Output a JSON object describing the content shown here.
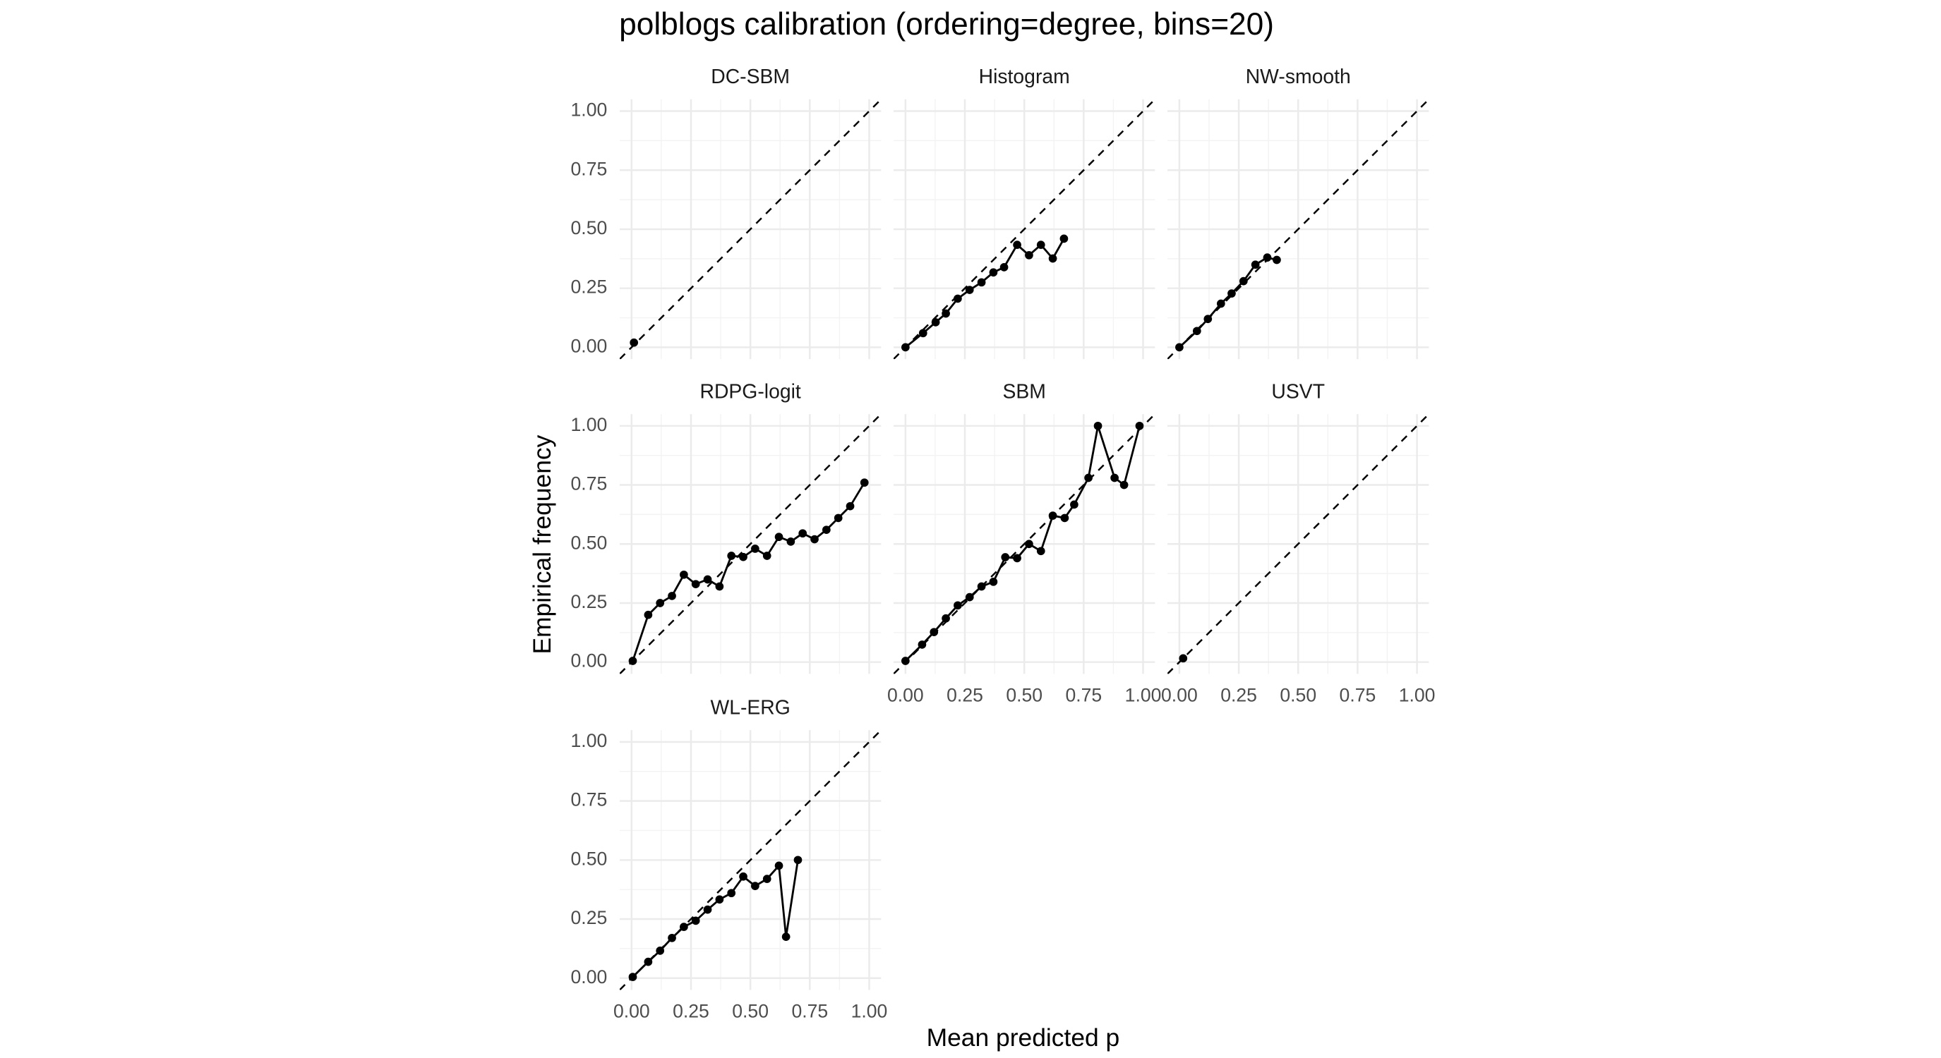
{
  "title": "polblogs calibration (ordering=degree, bins=20)",
  "x_label": "Mean predicted p",
  "y_label": "Empirical frequency",
  "xlim": [
    -0.05,
    1.05
  ],
  "ylim": [
    -0.05,
    1.05
  ],
  "xticks": [
    {
      "value": 0,
      "label": "0.00"
    },
    {
      "value": 0.25,
      "label": "0.25"
    },
    {
      "value": 0.5,
      "label": "0.50"
    },
    {
      "value": 0.75,
      "label": "0.75"
    },
    {
      "value": 1,
      "label": "1.00"
    }
  ],
  "yticks": [
    {
      "value": 0,
      "label": "0.00"
    },
    {
      "value": 0.25,
      "label": "0.25"
    },
    {
      "value": 0.5,
      "label": "0.50"
    },
    {
      "value": 0.75,
      "label": "0.75"
    },
    {
      "value": 1,
      "label": "1.00"
    }
  ],
  "grid": true,
  "color": "#000000",
  "chart_data": [
    {
      "type": "line",
      "title": "DC-SBM",
      "x": [
        0.01
      ],
      "values": [
        0.02
      ]
    },
    {
      "type": "line",
      "title": "Histogram",
      "x": [
        0,
        0.074,
        0.127,
        0.17,
        0.22,
        0.27,
        0.32,
        0.37,
        0.415,
        0.47,
        0.52,
        0.57,
        0.62,
        0.667
      ],
      "values": [
        0,
        0.06,
        0.106,
        0.143,
        0.206,
        0.243,
        0.275,
        0.317,
        0.339,
        0.434,
        0.39,
        0.434,
        0.376,
        0.46
      ]
    },
    {
      "type": "line",
      "title": "NW-smooth",
      "x": [
        0,
        0.074,
        0.12,
        0.175,
        0.22,
        0.27,
        0.32,
        0.37,
        0.41
      ],
      "values": [
        0,
        0.069,
        0.12,
        0.185,
        0.228,
        0.28,
        0.35,
        0.38,
        0.37
      ]
    },
    {
      "type": "line",
      "title": "RDPG-logit",
      "x": [
        0.005,
        0.07,
        0.12,
        0.17,
        0.22,
        0.27,
        0.32,
        0.37,
        0.42,
        0.47,
        0.52,
        0.57,
        0.62,
        0.67,
        0.72,
        0.77,
        0.82,
        0.87,
        0.92,
        0.98
      ],
      "values": [
        0.005,
        0.2,
        0.25,
        0.28,
        0.37,
        0.33,
        0.35,
        0.32,
        0.45,
        0.445,
        0.48,
        0.45,
        0.53,
        0.51,
        0.545,
        0.52,
        0.56,
        0.61,
        0.66,
        0.76
      ]
    },
    {
      "type": "line",
      "title": "SBM",
      "x": [
        0,
        0.07,
        0.12,
        0.17,
        0.22,
        0.27,
        0.32,
        0.37,
        0.42,
        0.47,
        0.52,
        0.57,
        0.62,
        0.67,
        0.71,
        0.77,
        0.81,
        0.88,
        0.92,
        0.985
      ],
      "values": [
        0.005,
        0.074,
        0.127,
        0.185,
        0.24,
        0.275,
        0.32,
        0.34,
        0.444,
        0.44,
        0.5,
        0.47,
        0.62,
        0.61,
        0.667,
        0.78,
        1.0,
        0.78,
        0.75,
        1.0
      ]
    },
    {
      "type": "line",
      "title": "USVT",
      "x": [
        0.016
      ],
      "values": [
        0.016
      ]
    },
    {
      "type": "line",
      "title": "WL-ERG",
      "x": [
        0.005,
        0.07,
        0.12,
        0.17,
        0.22,
        0.27,
        0.32,
        0.37,
        0.42,
        0.47,
        0.52,
        0.57,
        0.62,
        0.65,
        0.7
      ],
      "values": [
        0.005,
        0.069,
        0.116,
        0.17,
        0.217,
        0.243,
        0.29,
        0.333,
        0.36,
        0.43,
        0.39,
        0.42,
        0.476,
        0.175,
        0.5
      ]
    }
  ]
}
